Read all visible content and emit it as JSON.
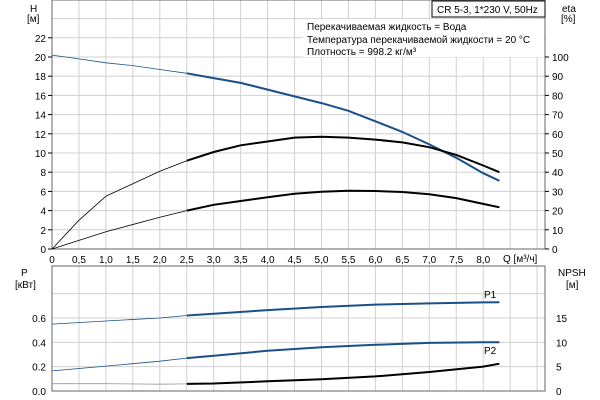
{
  "chart_data": [
    {
      "type": "line",
      "legend_box": "CR 5-3, 1*230 V, 50Hz",
      "info_lines": [
        "Перекачиваемая жидкость = Вода",
        "Температура перекачиваемой жидкости = 20 °C",
        "Плотность = 998.2 кг/м³"
      ],
      "xlabel": "Q [м³/ч]",
      "ylabel": "H",
      "ylabel_unit": "[м]",
      "y2label": "eta",
      "y2label_unit": "[%]",
      "xlim": [
        0,
        9.15
      ],
      "ylim": [
        0,
        26
      ],
      "y2lim": [
        0,
        130
      ],
      "x_ticks": [
        "0",
        "0,5",
        "1,0",
        "1,5",
        "2,0",
        "2,5",
        "3,0",
        "3,5",
        "4,0",
        "4,5",
        "5,0",
        "5,5",
        "6,0",
        "6,5",
        "7,0",
        "7,5",
        "8,0"
      ],
      "y_ticks": [
        0,
        2,
        4,
        6,
        8,
        10,
        12,
        14,
        16,
        18,
        20,
        22
      ],
      "y2_ticks": [
        0,
        10,
        20,
        30,
        40,
        50,
        60,
        70,
        80,
        90,
        100
      ],
      "grid": true,
      "series": [
        {
          "axis": "H",
          "color": "#1a4f8a",
          "x": [
            0,
            0.5,
            1,
            1.5,
            2,
            2.5,
            3,
            3.5,
            4,
            4.5,
            5,
            5.5,
            6,
            6.5,
            7,
            7.5,
            8,
            8.3
          ],
          "y": [
            20.2,
            19.8,
            19.4,
            19.1,
            18.7,
            18.3,
            17.8,
            17.3,
            16.6,
            15.9,
            15.2,
            14.4,
            13.3,
            12.2,
            10.9,
            9.5,
            7.9,
            7.1
          ]
        },
        {
          "axis": "eta",
          "color": "#000000",
          "x": [
            0,
            0.5,
            1,
            1.5,
            2,
            2.5,
            3,
            3.5,
            4,
            4.5,
            5,
            5.5,
            6,
            6.5,
            7,
            7.5,
            8,
            8.3
          ],
          "y": [
            0,
            15,
            27.5,
            34,
            40.5,
            46,
            50.5,
            54,
            56,
            58,
            58.5,
            58,
            57,
            55.5,
            53,
            49,
            43.5,
            40
          ]
        },
        {
          "axis": "eta",
          "color": "#000000",
          "x": [
            0,
            1,
            2,
            2.5,
            3,
            3.5,
            4,
            4.5,
            5,
            5.5,
            6,
            6.5,
            7,
            7.5,
            8,
            8.3
          ],
          "y": [
            0,
            9,
            16.5,
            20,
            23,
            25,
            27,
            28.8,
            29.8,
            30.3,
            30.2,
            29.7,
            28.5,
            26.5,
            23.5,
            21.7
          ]
        }
      ]
    },
    {
      "type": "line",
      "ylabel": "P",
      "ylabel_unit": "[кВт]",
      "y2label": "NPSH",
      "y2label_unit": "[м]",
      "xlim": [
        0,
        9.15
      ],
      "ylim": [
        0,
        0.85
      ],
      "y2lim": [
        0,
        21.25
      ],
      "y_ticks": [
        "0.0",
        "0.2",
        "0.4",
        "0.6"
      ],
      "y2_ticks": [
        0,
        5,
        10,
        15
      ],
      "grid": true,
      "series": [
        {
          "name": "P1",
          "axis": "P",
          "color": "#1a4f8a",
          "x": [
            0,
            1,
            2,
            2.5,
            3,
            4,
            5,
            6,
            7,
            8,
            8.3
          ],
          "y": [
            0.55,
            0.575,
            0.6,
            0.62,
            0.635,
            0.665,
            0.69,
            0.71,
            0.72,
            0.728,
            0.73
          ]
        },
        {
          "name": "P2",
          "axis": "P",
          "color": "#1a4f8a",
          "x": [
            0,
            1,
            2,
            2.5,
            3,
            4,
            5,
            6,
            7,
            8,
            8.3
          ],
          "y": [
            0.165,
            0.205,
            0.245,
            0.27,
            0.29,
            0.33,
            0.36,
            0.38,
            0.395,
            0.4,
            0.4
          ]
        },
        {
          "axis": "NPSH",
          "color": "#000000",
          "x": [
            0,
            1,
            2,
            2.5,
            3,
            4,
            5,
            6,
            7,
            8,
            8.3
          ],
          "y": [
            1.5,
            1.5,
            1.4,
            1.45,
            1.55,
            2,
            2.4,
            3,
            3.9,
            5,
            5.6
          ]
        }
      ]
    }
  ]
}
